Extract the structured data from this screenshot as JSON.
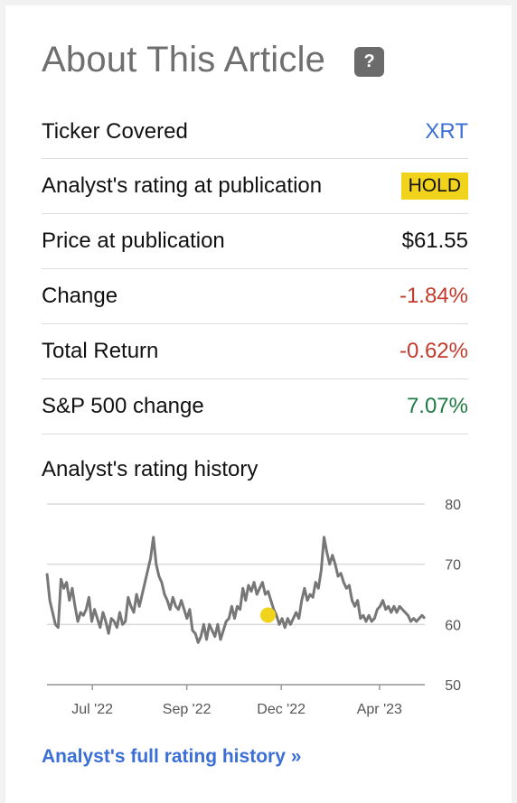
{
  "header": {
    "title": "About This Article",
    "help_icon": "?"
  },
  "rows": [
    {
      "label": "Ticker Covered",
      "value": "XRT"
    },
    {
      "label": "Analyst's rating at publication",
      "value": "HOLD"
    },
    {
      "label": "Price at publication",
      "value": "$61.55"
    },
    {
      "label": "Change",
      "value": "-1.84%"
    },
    {
      "label": "Total Return",
      "value": "-0.62%"
    },
    {
      "label": "S&P 500 change",
      "value": "7.07%"
    }
  ],
  "history_title": "Analyst's rating history",
  "link_text": "Analyst's full rating history »",
  "colors": {
    "title": "#6f6f6f",
    "link": "#3b6fd6",
    "hold_badge": "#f2d31b",
    "negative": "#c23b2e",
    "positive": "#1f7a45",
    "line": "#777777",
    "marker": "#f2d31b"
  },
  "chart_data": {
    "type": "line",
    "ylim": [
      50,
      80
    ],
    "y_ticks": [
      "80",
      "70",
      "60",
      "50"
    ],
    "x_ticks": [
      {
        "label": "Jul '22",
        "t": 0.12
      },
      {
        "label": "Sep '22",
        "t": 0.37
      },
      {
        "label": "Dec '22",
        "t": 0.62
      },
      {
        "label": "Apr '23",
        "t": 0.88
      }
    ],
    "grid": true,
    "marker": {
      "t": 0.585,
      "value": 61.55,
      "label": "rating at publication"
    },
    "values": [
      68.5,
      64,
      62,
      60,
      59.5,
      67.5,
      66,
      67,
      64,
      66,
      63,
      60.5,
      62,
      61.5,
      62.5,
      64.5,
      60.5,
      62.5,
      61,
      59.5,
      62,
      60.5,
      58.5,
      61,
      60.5,
      59.5,
      62,
      60,
      60.5,
      64.5,
      63,
      62,
      65,
      63,
      65,
      67,
      69,
      71,
      74.5,
      70,
      68,
      67,
      65,
      64,
      62.5,
      64.5,
      63,
      62.5,
      64,
      62.5,
      61,
      62.5,
      59,
      58.5,
      57,
      58,
      60,
      57.5,
      60,
      59,
      58,
      60,
      57.5,
      59,
      60.5,
      61,
      63,
      61,
      63,
      62.5,
      66,
      64,
      66.5,
      65.5,
      67,
      65,
      66,
      67,
      65,
      65.5,
      64,
      62.5,
      61.5,
      60,
      61,
      59.5,
      61,
      60,
      61,
      62,
      61,
      64,
      66,
      64,
      65,
      64.5,
      67,
      66,
      69,
      74.5,
      72,
      70,
      71.5,
      70,
      68,
      68.5,
      67,
      66,
      66.5,
      64,
      63,
      64,
      61,
      61.5,
      60.5,
      61.5,
      60.5,
      61,
      62.5,
      63,
      64,
      62.5,
      63,
      62,
      63,
      62,
      63,
      62.5,
      62,
      61.5,
      60.5,
      61,
      60.5,
      61,
      61.5,
      61
    ]
  }
}
